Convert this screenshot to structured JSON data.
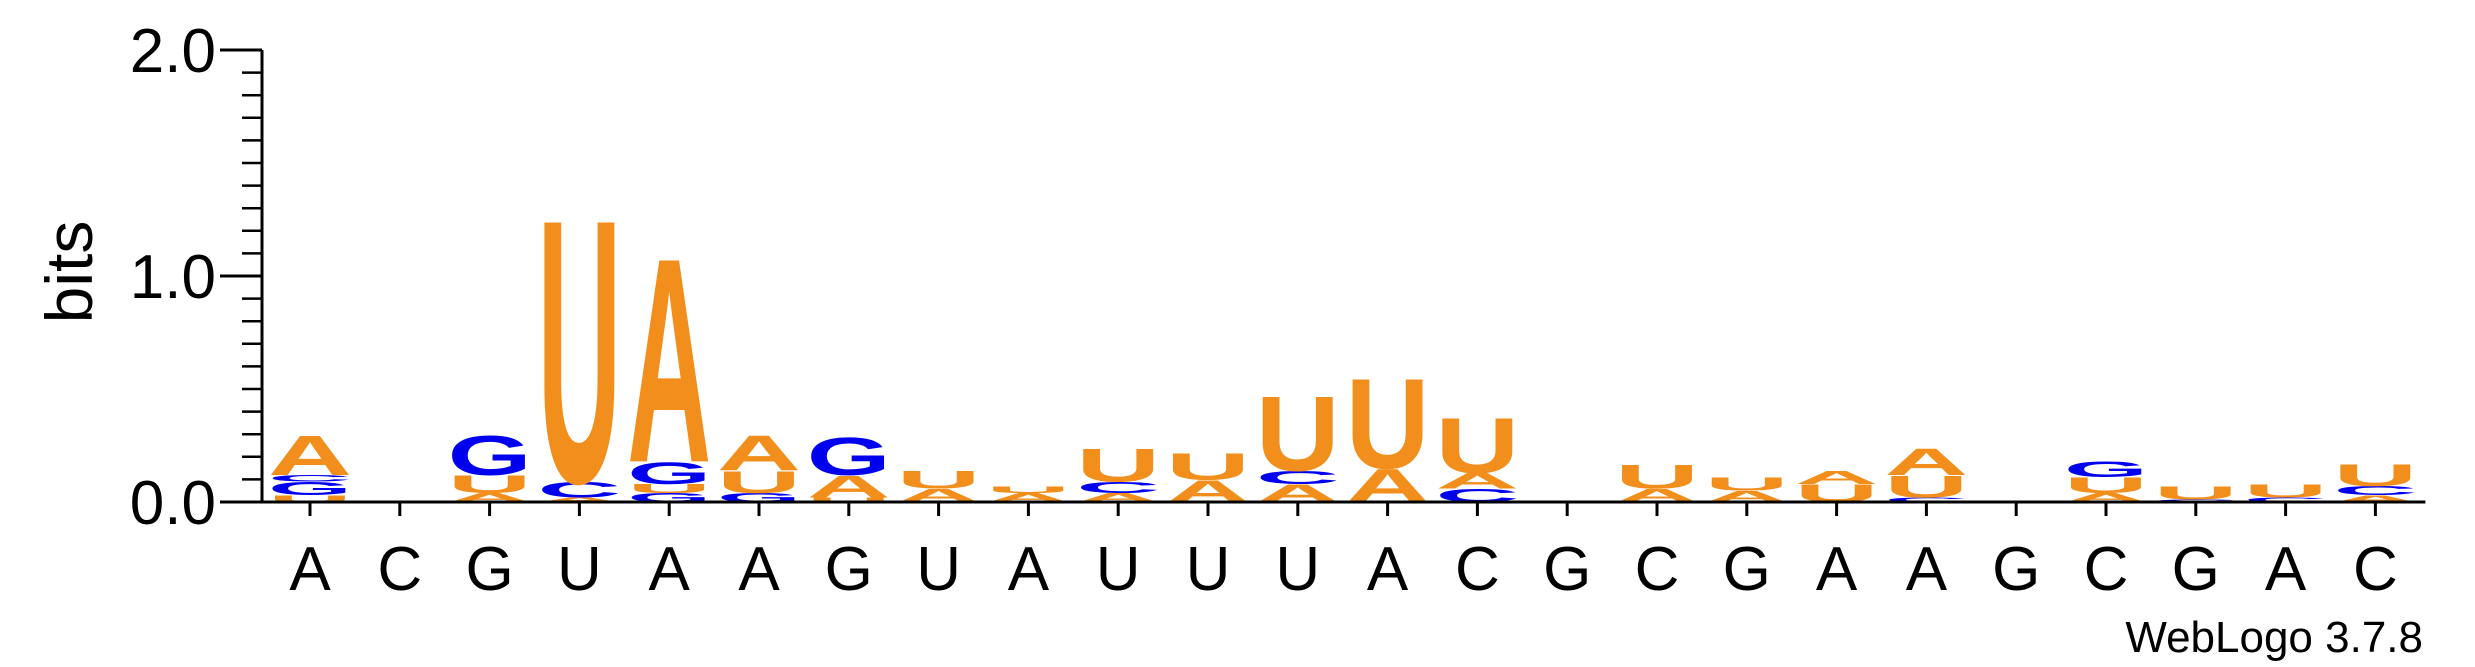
{
  "chart_data": {
    "type": "sequence-logo",
    "ylabel": "bits",
    "ylim": [
      0,
      2.0
    ],
    "yticks": [
      "0.0",
      "1.0",
      "2.0"
    ],
    "positions": [
      "A",
      "C",
      "G",
      "U",
      "A",
      "A",
      "G",
      "U",
      "A",
      "U",
      "U",
      "U",
      "A",
      "C",
      "G",
      "C",
      "G",
      "A",
      "A",
      "G",
      "C",
      "G",
      "A",
      "C"
    ],
    "colors": {
      "A": "#f28e1c",
      "U": "#f28e1c",
      "G": "#0000ee",
      "C": "#0000ee"
    },
    "stacks": [
      [
        [
          "U",
          0.03
        ],
        [
          "G",
          0.06
        ],
        [
          "C",
          0.03
        ],
        [
          "A",
          0.18
        ]
      ],
      [],
      [
        [
          "A",
          0.04
        ],
        [
          "U",
          0.08
        ],
        [
          "G",
          0.18
        ]
      ],
      [
        [
          "A",
          0.02
        ],
        [
          "C",
          0.07
        ],
        [
          "U",
          1.2
        ]
      ],
      [
        [
          "G",
          0.04
        ],
        [
          "U",
          0.04
        ],
        [
          "G",
          0.1
        ],
        [
          "A",
          0.93
        ]
      ],
      [
        [
          "G",
          0.04
        ],
        [
          "U",
          0.1
        ],
        [
          "A",
          0.16
        ]
      ],
      [
        [
          "U",
          0.02
        ],
        [
          "A",
          0.1
        ],
        [
          "G",
          0.17
        ]
      ],
      [
        [
          "A",
          0.06
        ],
        [
          "U",
          0.08
        ]
      ],
      [
        [
          "A",
          0.04
        ],
        [
          "U",
          0.03
        ]
      ],
      [
        [
          "A",
          0.04
        ],
        [
          "C",
          0.05
        ],
        [
          "U",
          0.15
        ]
      ],
      [
        [
          "A",
          0.1
        ],
        [
          "U",
          0.12
        ]
      ],
      [
        [
          "A",
          0.08
        ],
        [
          "C",
          0.06
        ],
        [
          "U",
          0.34
        ]
      ],
      [
        [
          "A",
          0.15
        ],
        [
          "U",
          0.41
        ]
      ],
      [
        [
          "C",
          0.06
        ],
        [
          "A",
          0.07
        ],
        [
          "U",
          0.25
        ]
      ],
      [],
      [
        [
          "A",
          0.06
        ],
        [
          "U",
          0.11
        ]
      ],
      [
        [
          "A",
          0.05
        ],
        [
          "U",
          0.06
        ]
      ],
      [
        [
          "U",
          0.08
        ],
        [
          "A",
          0.06
        ]
      ],
      [
        [
          "C",
          0.02
        ],
        [
          "U",
          0.1
        ],
        [
          "A",
          0.12
        ]
      ],
      [],
      [
        [
          "A",
          0.04
        ],
        [
          "U",
          0.07
        ],
        [
          "G",
          0.07
        ]
      ],
      [
        [
          "C",
          0.01
        ],
        [
          "U",
          0.06
        ]
      ],
      [
        [
          "C",
          0.02
        ],
        [
          "U",
          0.06
        ]
      ],
      [
        [
          "A",
          0.03
        ],
        [
          "C",
          0.04
        ],
        [
          "U",
          0.1
        ]
      ]
    ],
    "footer": "WebLogo 3.7.8"
  }
}
